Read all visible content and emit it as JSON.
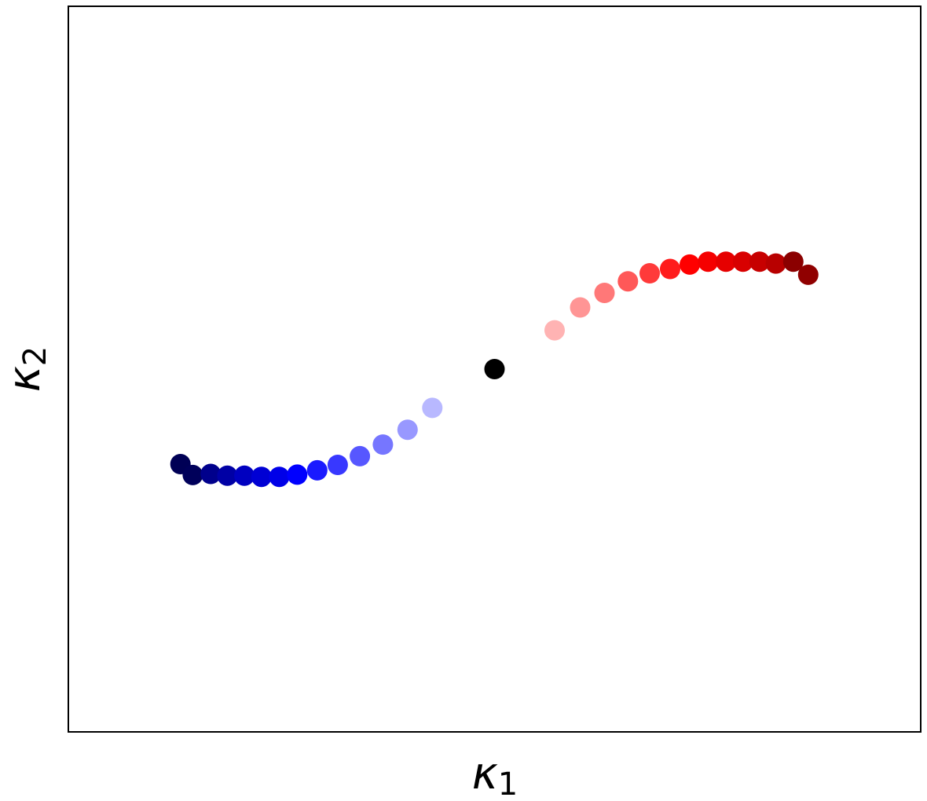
{
  "chart_data": {
    "type": "scatter",
    "title": "",
    "xlabel": {
      "symbol": "κ",
      "subscript": "1"
    },
    "ylabel": {
      "symbol": "κ",
      "subscript": "2"
    },
    "xlim": [
      -1,
      1
    ],
    "ylim": [
      -1,
      1
    ],
    "grid": false,
    "ticks": false,
    "legend": "none",
    "points": [
      {
        "x": -0.737,
        "y": -0.262,
        "color": "#000055"
      },
      {
        "x": -0.708,
        "y": -0.292,
        "color": "#00005a"
      },
      {
        "x": -0.666,
        "y": -0.289,
        "color": "#00008c"
      },
      {
        "x": -0.627,
        "y": -0.294,
        "color": "#0000a5"
      },
      {
        "x": -0.587,
        "y": -0.294,
        "color": "#0000c0"
      },
      {
        "x": -0.547,
        "y": -0.297,
        "color": "#0000d4"
      },
      {
        "x": -0.505,
        "y": -0.297,
        "color": "#0000e8"
      },
      {
        "x": -0.463,
        "y": -0.291,
        "color": "#0000ff"
      },
      {
        "x": -0.416,
        "y": -0.279,
        "color": "#1a1aff"
      },
      {
        "x": -0.368,
        "y": -0.264,
        "color": "#3838ff"
      },
      {
        "x": -0.316,
        "y": -0.24,
        "color": "#5757ff"
      },
      {
        "x": -0.262,
        "y": -0.208,
        "color": "#7676ff"
      },
      {
        "x": -0.204,
        "y": -0.167,
        "color": "#9898ff"
      },
      {
        "x": -0.146,
        "y": -0.107,
        "color": "#b8b8ff"
      },
      {
        "x": 0.0,
        "y": 0.0,
        "color": "#000000"
      },
      {
        "x": 0.141,
        "y": 0.107,
        "color": "#ffb3b3"
      },
      {
        "x": 0.201,
        "y": 0.17,
        "color": "#ff9595"
      },
      {
        "x": 0.258,
        "y": 0.21,
        "color": "#ff7878"
      },
      {
        "x": 0.313,
        "y": 0.242,
        "color": "#ff5858"
      },
      {
        "x": 0.364,
        "y": 0.264,
        "color": "#ff3a3a"
      },
      {
        "x": 0.412,
        "y": 0.276,
        "color": "#ff1c1c"
      },
      {
        "x": 0.458,
        "y": 0.288,
        "color": "#ff0000"
      },
      {
        "x": 0.501,
        "y": 0.296,
        "color": "#f50000"
      },
      {
        "x": 0.543,
        "y": 0.296,
        "color": "#e60000"
      },
      {
        "x": 0.583,
        "y": 0.296,
        "color": "#d80000"
      },
      {
        "x": 0.622,
        "y": 0.296,
        "color": "#c70000"
      },
      {
        "x": 0.66,
        "y": 0.291,
        "color": "#b80000"
      },
      {
        "x": 0.701,
        "y": 0.296,
        "color": "#8b0000"
      },
      {
        "x": 0.736,
        "y": 0.26,
        "color": "#900000"
      }
    ]
  }
}
